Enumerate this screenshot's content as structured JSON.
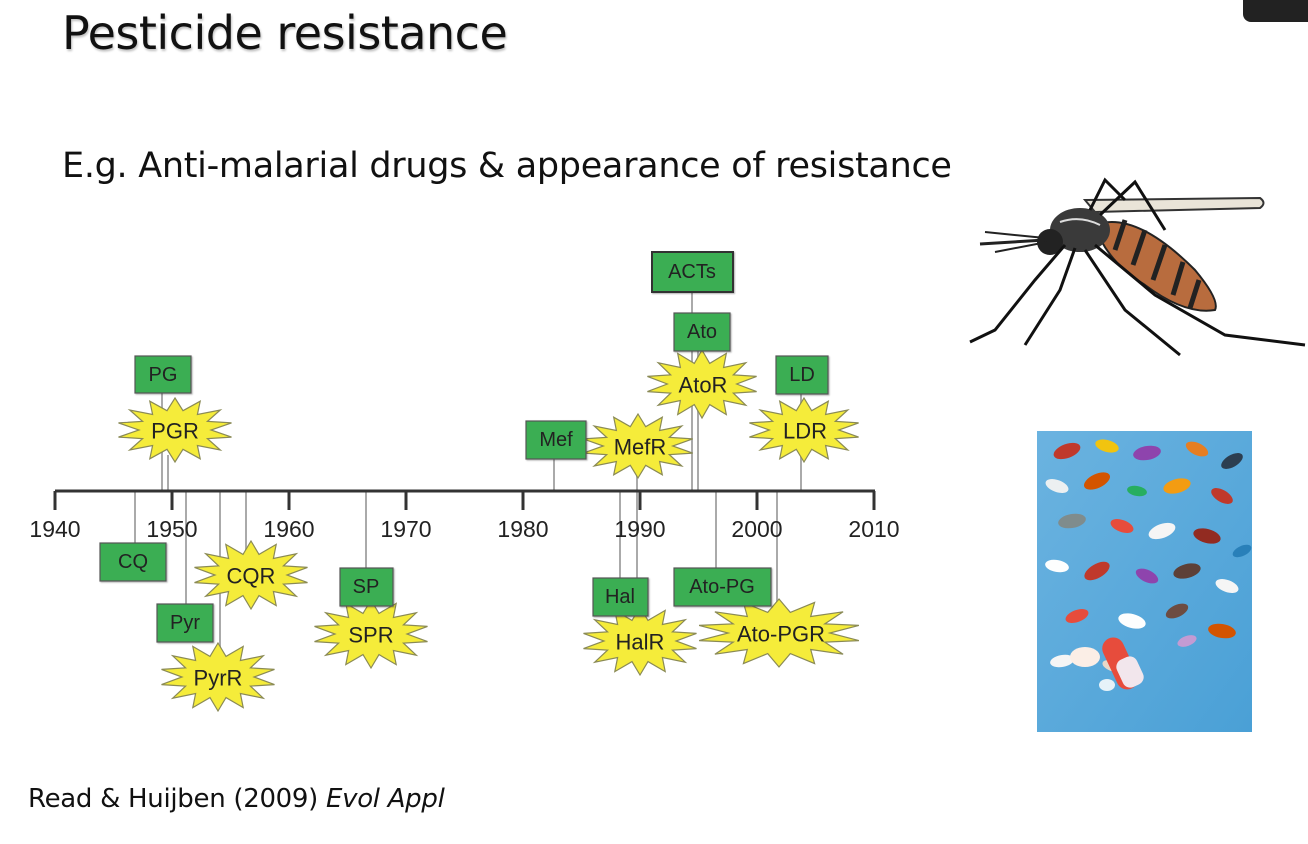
{
  "slide": {
    "title": "Pesticide resistance",
    "subtitle": "E.g. Anti-malarial drugs & appearance of resistance",
    "citation_authors": "Read & Huijben (2009) ",
    "citation_journal": "Evol Appl"
  },
  "timeline": {
    "year_ticks": [
      "1940",
      "1950",
      "1960",
      "1970",
      "1980",
      "1990",
      "2000",
      "2010"
    ],
    "year_min": 1940,
    "year_max": 2010,
    "drugs_introduced": [
      {
        "label": "PG",
        "year": 1948.8,
        "side": "above"
      },
      {
        "label": "Mef",
        "year": 1983,
        "side": "above"
      },
      {
        "label": "ACTs",
        "year": 1994.5,
        "side": "above"
      },
      {
        "label": "Ato",
        "year": 1995,
        "side": "above"
      },
      {
        "label": "LD",
        "year": 2004,
        "side": "above"
      },
      {
        "label": "CQ",
        "year": 1947,
        "side": "below"
      },
      {
        "label": "Pyr",
        "year": 1951,
        "side": "below"
      },
      {
        "label": "SP",
        "year": 1967,
        "side": "below"
      },
      {
        "label": "Hal",
        "year": 1988.5,
        "side": "below"
      },
      {
        "label": "Ato-PG",
        "year": 1996.5,
        "side": "below"
      }
    ],
    "resistance_appeared": [
      {
        "label": "PGR",
        "year": 1949.5,
        "side": "above"
      },
      {
        "label": "MefR",
        "year": 1990,
        "side": "above"
      },
      {
        "label": "AtoR",
        "year": 1995.5,
        "side": "above"
      },
      {
        "label": "LDR",
        "year": 2004,
        "side": "above"
      },
      {
        "label": "CQR",
        "year": 1957,
        "side": "below"
      },
      {
        "label": "PyrR",
        "year": 1954,
        "side": "below"
      },
      {
        "label": "SPR",
        "year": 1967,
        "side": "below"
      },
      {
        "label": "HalR",
        "year": 1990,
        "side": "below"
      },
      {
        "label": "Ato-PGR",
        "year": 2002,
        "side": "below"
      }
    ]
  },
  "colors": {
    "drug_box": "#3aae52",
    "drug_box_border": "#555555",
    "starburst": "#f5ec3a",
    "starburst_border": "#8a8a55",
    "axis": "#333333",
    "connector": "#aaaaaa"
  }
}
